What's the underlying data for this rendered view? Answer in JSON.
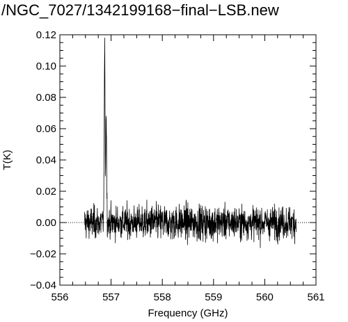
{
  "chart_data": {
    "type": "line",
    "title": "/NGC_7027/1342199168−final−LSB.new",
    "xlabel": "Frequency (GHz)",
    "ylabel": "T(K)",
    "xlim": [
      556,
      561
    ],
    "ylim": [
      -0.04,
      0.12
    ],
    "x_ticks": [
      "556",
      "557",
      "558",
      "559",
      "560",
      "561"
    ],
    "y_ticks": [
      "−0.04",
      "−0.02",
      "0.00",
      "0.02",
      "0.04",
      "0.06",
      "0.08",
      "0.10",
      "0.12"
    ],
    "reference_line": {
      "y": 0.0,
      "style": "dotted"
    },
    "grid": false,
    "legend": "none",
    "line_color": "#000000",
    "series": [
      {
        "x_start": 556.48,
        "x_end": 560.62,
        "noise_rms": 0.008,
        "features": [
          {
            "x": 556.875,
            "peak": 0.108,
            "note": "main emission peak"
          },
          {
            "x": 556.905,
            "peak": 0.068
          }
        ]
      }
    ]
  }
}
